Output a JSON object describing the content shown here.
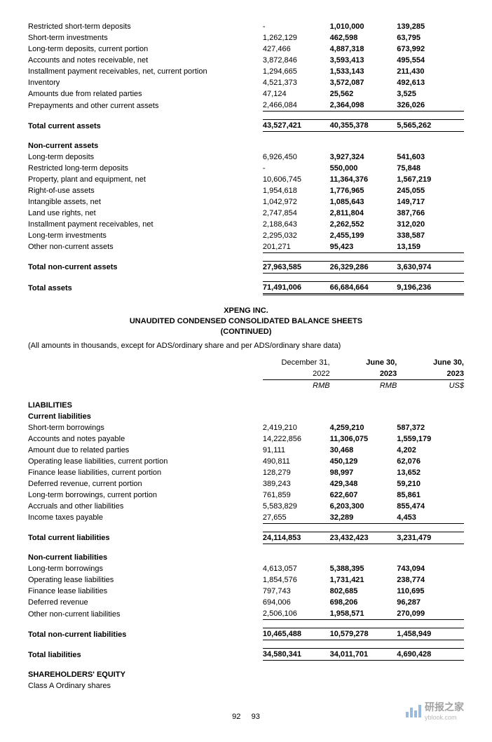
{
  "table1": {
    "rows": [
      {
        "label": "Restricted short-term deposits",
        "c1": "-",
        "c2": "1,010,000",
        "c3": "139,285"
      },
      {
        "label": "Short-term investments",
        "c1": "1,262,129",
        "c2": "462,598",
        "c3": "63,795"
      },
      {
        "label": "Long-term deposits, current portion",
        "c1": "427,466",
        "c2": "4,887,318",
        "c3": "673,992"
      },
      {
        "label": "Accounts and notes receivable, net",
        "c1": "3,872,846",
        "c2": "3,593,413",
        "c3": "495,554"
      },
      {
        "label": "Installment payment receivables, net, current portion",
        "c1": "1,294,665",
        "c2": "1,533,143",
        "c3": "211,430"
      },
      {
        "label": "Inventory",
        "c1": "4,521,373",
        "c2": "3,572,087",
        "c3": "492,613"
      },
      {
        "label": "Amounts due from related parties",
        "c1": "47,124",
        "c2": "25,562",
        "c3": "3,525"
      },
      {
        "label": "Prepayments and other current assets",
        "c1": "2,466,084",
        "c2": "2,364,098",
        "c3": "326,026"
      }
    ],
    "total_current_assets": {
      "label": "Total current assets",
      "c1": "43,527,421",
      "c2": "40,355,378",
      "c3": "5,565,262"
    },
    "non_current_header": "Non-current assets",
    "non_current_rows": [
      {
        "label": "Long-term deposits",
        "c1": "6,926,450",
        "c2": "3,927,324",
        "c3": "541,603"
      },
      {
        "label": "Restricted long-term deposits",
        "c1": "-",
        "c2": "550,000",
        "c3": "75,848"
      },
      {
        "label": "Property, plant and equipment, net",
        "c1": "10,606,745",
        "c2": "11,364,376",
        "c3": "1,567,219"
      },
      {
        "label": "Right-of-use assets",
        "c1": "1,954,618",
        "c2": "1,776,965",
        "c3": "245,055"
      },
      {
        "label": "Intangible assets, net",
        "c1": "1,042,972",
        "c2": "1,085,643",
        "c3": "149,717"
      },
      {
        "label": "Land use rights, net",
        "c1": "2,747,854",
        "c2": "2,811,804",
        "c3": "387,766"
      },
      {
        "label": "Installment payment receivables, net",
        "c1": "2,188,643",
        "c2": "2,262,552",
        "c3": "312,020"
      },
      {
        "label": "Long-term investments",
        "c1": "2,295,032",
        "c2": "2,455,199",
        "c3": "338,587"
      },
      {
        "label": "Other non-current assets",
        "c1": "201,271",
        "c2": "95,423",
        "c3": "13,159"
      }
    ],
    "total_non_current": {
      "label": "Total non-current assets",
      "c1": "27,963,585",
      "c2": "26,329,286",
      "c3": "3,630,974"
    },
    "total_assets": {
      "label": "Total assets",
      "c1": "71,491,006",
      "c2": "66,684,664",
      "c3": "9,196,236"
    }
  },
  "header2": {
    "company": "XPENG INC.",
    "title": "UNAUDITED CONDENSED CONSOLIDATED BALANCE SHEETS",
    "continued": "(CONTINUED)",
    "note": "(All amounts in thousands, except for ADS/ordinary share and per ADS/ordinary share data)"
  },
  "columns2": {
    "h1a": "December 31,",
    "h1b": "2022",
    "h1c": "RMB",
    "h2a": "June 30,",
    "h2b": "2023",
    "h2c": "RMB",
    "h3a": "June 30,",
    "h3b": "2023",
    "h3c": "US$"
  },
  "table2": {
    "liabilities_header": "LIABILITIES",
    "current_liab_header": "Current liabilities",
    "current_rows": [
      {
        "label": "Short-term borrowings",
        "c1": "2,419,210",
        "c2": "4,259,210",
        "c3": "587,372"
      },
      {
        "label": "Accounts and notes payable",
        "c1": "14,222,856",
        "c2": "11,306,075",
        "c3": "1,559,179"
      },
      {
        "label": "Amount due to related parties",
        "c1": "91,111",
        "c2": "30,468",
        "c3": "4,202"
      },
      {
        "label": "Operating lease liabilities, current portion",
        "c1": "490,811",
        "c2": "450,129",
        "c3": "62,076"
      },
      {
        "label": "Finance lease liabilities, current portion",
        "c1": "128,279",
        "c2": "98,997",
        "c3": "13,652"
      },
      {
        "label": "Deferred revenue, current portion",
        "c1": "389,243",
        "c2": "429,348",
        "c3": "59,210"
      },
      {
        "label": "Long-term borrowings, current portion",
        "c1": "761,859",
        "c2": "622,607",
        "c3": "85,861"
      },
      {
        "label": "Accruals and other liabilities",
        "c1": "5,583,829",
        "c2": "6,203,300",
        "c3": "855,474"
      },
      {
        "label": "Income taxes payable",
        "c1": "27,655",
        "c2": "32,289",
        "c3": "4,453"
      }
    ],
    "total_current_liab": {
      "label": "Total current liabilities",
      "c1": "24,114,853",
      "c2": "23,432,423",
      "c3": "3,231,479"
    },
    "non_current_liab_header": "Non-current liabilities",
    "non_current_rows": [
      {
        "label": "Long-term borrowings",
        "c1": "4,613,057",
        "c2": "5,388,395",
        "c3": "743,094"
      },
      {
        "label": "Operating lease liabilities",
        "c1": "1,854,576",
        "c2": "1,731,421",
        "c3": "238,774"
      },
      {
        "label": "Finance lease liabilities",
        "c1": "797,743",
        "c2": "802,685",
        "c3": "110,695"
      },
      {
        "label": "Deferred revenue",
        "c1": "694,006",
        "c2": "698,206",
        "c3": "96,287"
      },
      {
        "label": "Other non-current liabilities",
        "c1": "2,506,106",
        "c2": "1,958,571",
        "c3": "270,099"
      }
    ],
    "total_non_current_liab": {
      "label": "Total non-current liabilities",
      "c1": "10,465,488",
      "c2": "10,579,278",
      "c3": "1,458,949"
    },
    "total_liabilities": {
      "label": "Total liabilities",
      "c1": "34,580,341",
      "c2": "34,011,701",
      "c3": "4,690,428"
    },
    "shareholders_header": "SHAREHOLDERS' EQUITY",
    "class_a": "Class A Ordinary shares"
  },
  "footer": {
    "page_left": "92",
    "page_right": "93",
    "watermark_main": "研报之家",
    "watermark_sub": "yblook.com"
  }
}
